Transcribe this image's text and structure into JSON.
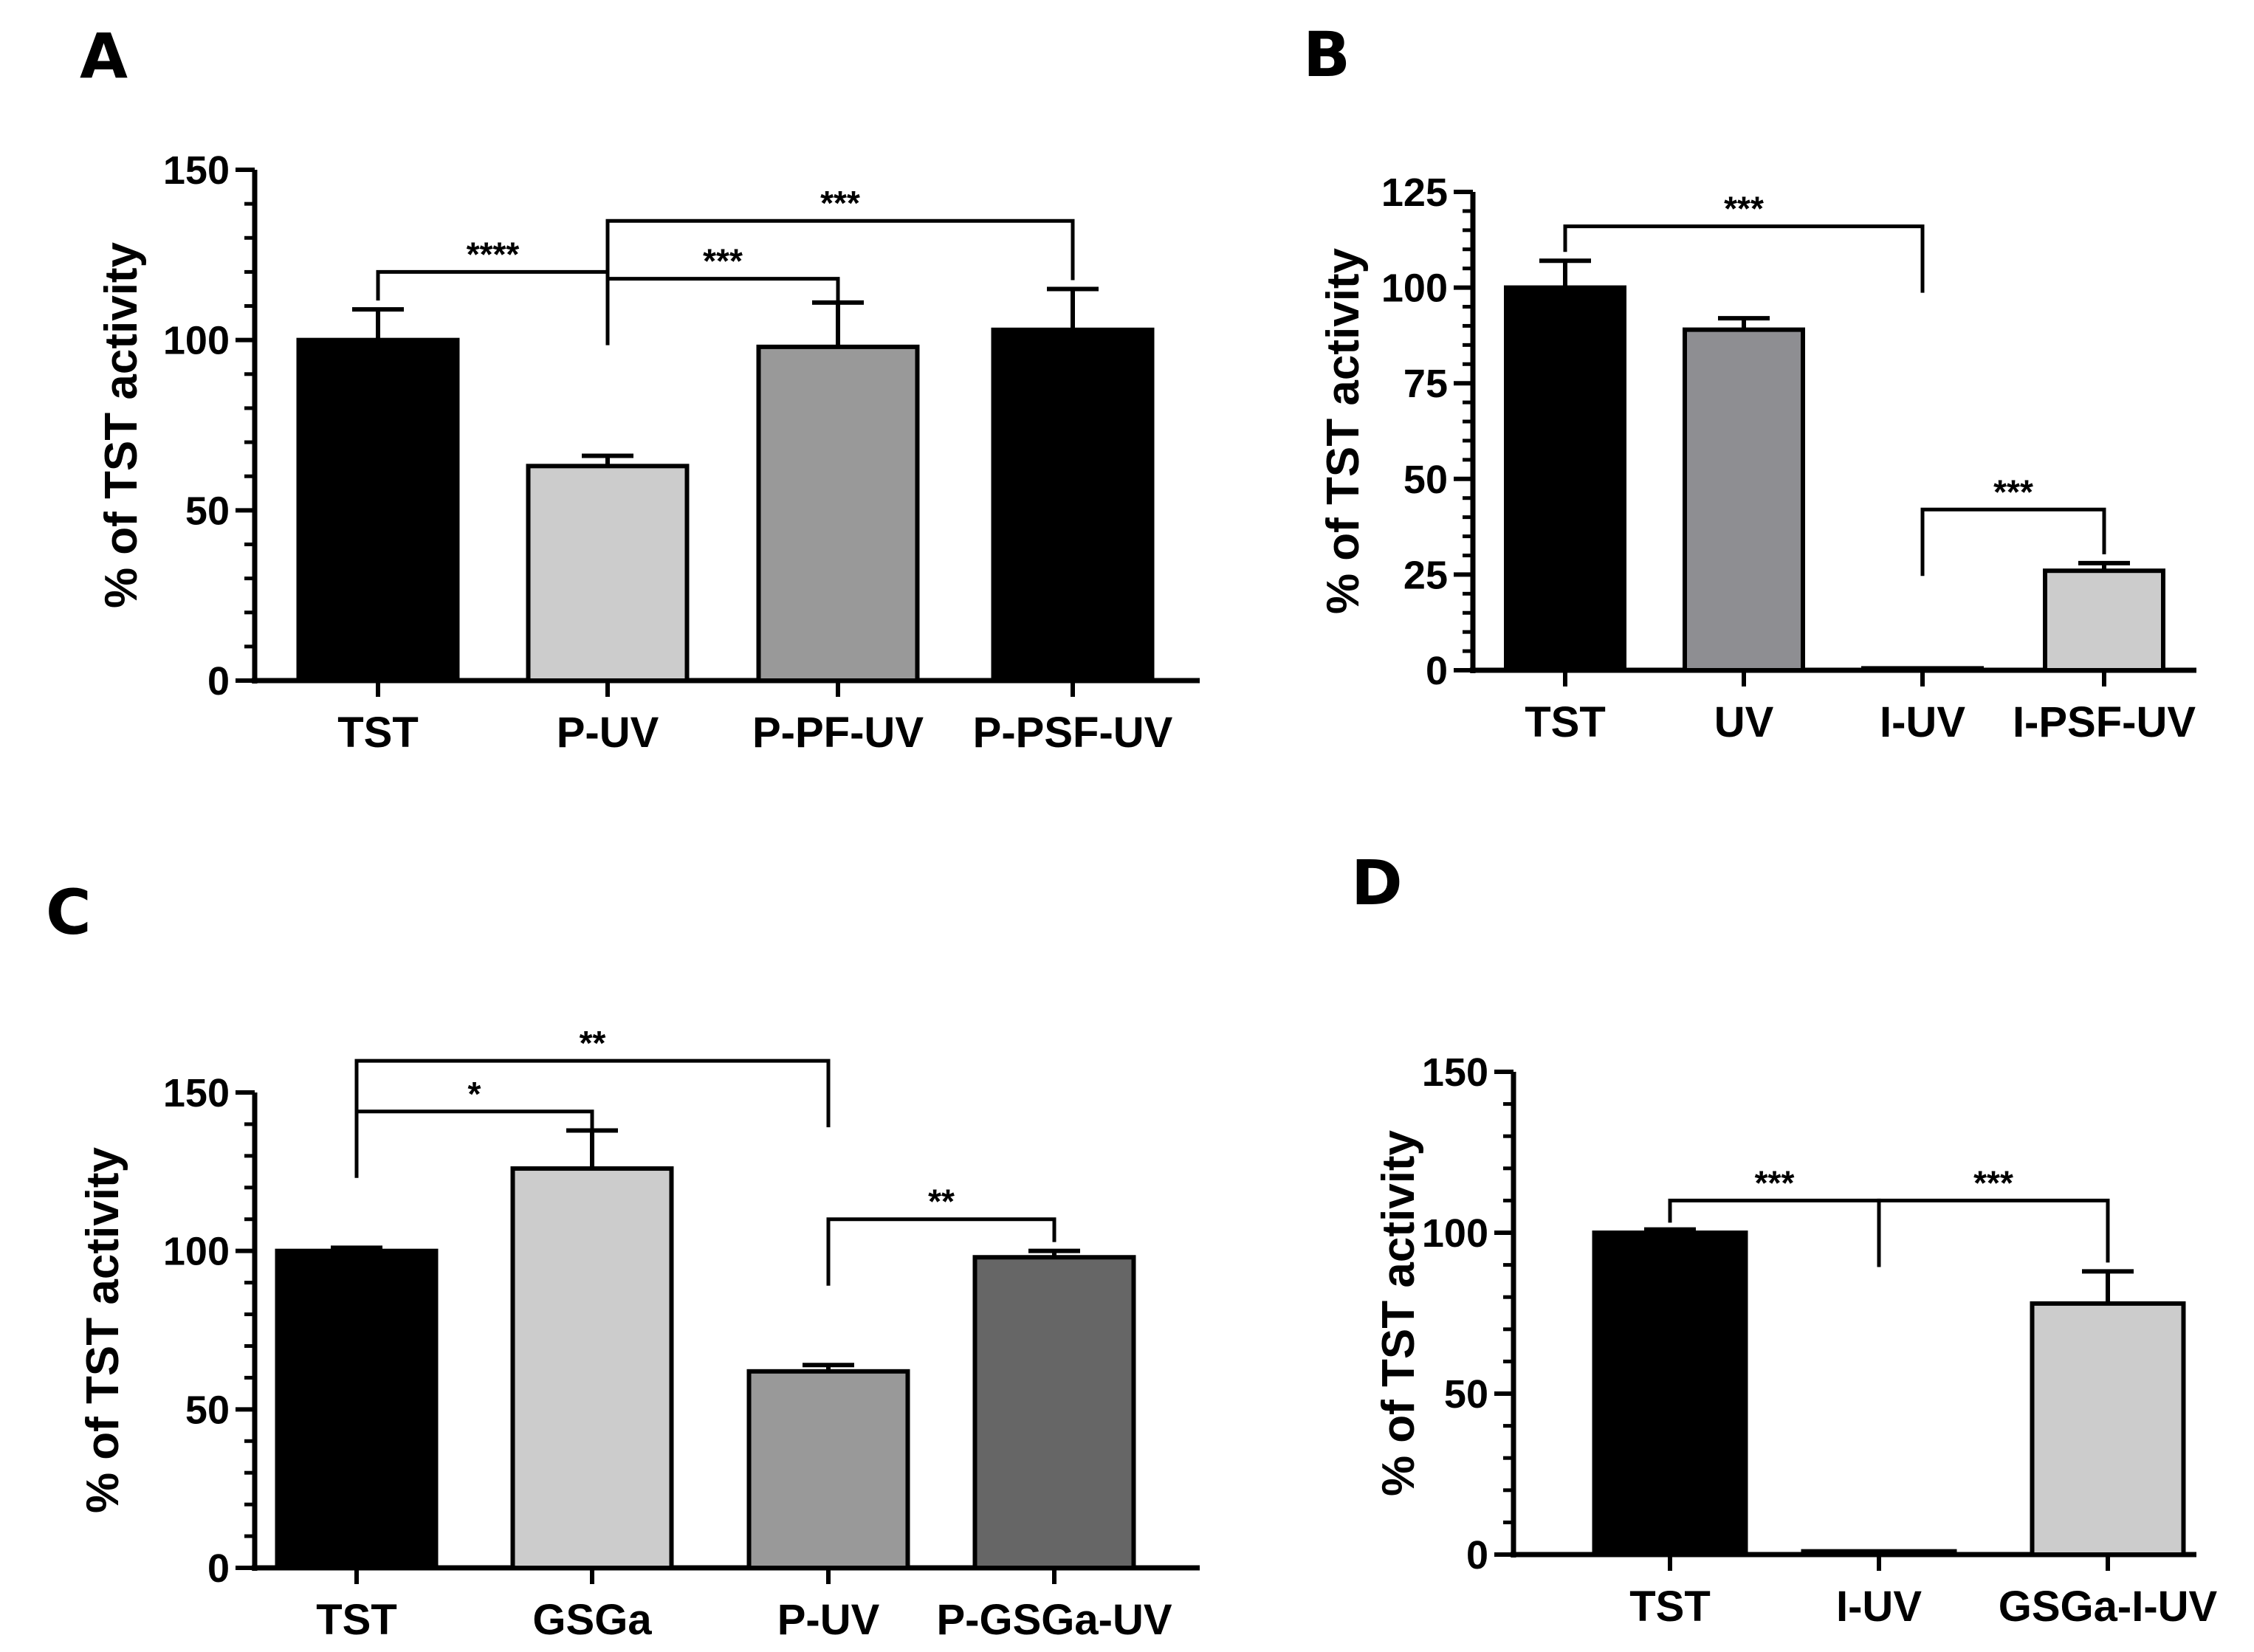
{
  "figure": {
    "description_label": "Four-panel bar chart figure"
  },
  "chart_data": [
    {
      "panel": "A",
      "type": "bar",
      "ylabel": "% of TST activity",
      "ylim": [
        0,
        150
      ],
      "yticks": [
        0,
        50,
        100,
        150
      ],
      "categories": [
        "TST",
        "P-UV",
        "P-PF-UV",
        "P-PSF-UV"
      ],
      "values": [
        100,
        63,
        98,
        103
      ],
      "errors": [
        9,
        3,
        13,
        12
      ],
      "colors": [
        "#000000",
        "#cccccc",
        "#999999",
        "#000000"
      ],
      "significance": [
        {
          "from": 0,
          "to": 1,
          "label": "****",
          "y": 120
        },
        {
          "from": 1,
          "to": 2,
          "label": "***",
          "y": 118
        },
        {
          "from": 1,
          "to": 3,
          "label": "***",
          "y": 135
        }
      ]
    },
    {
      "panel": "B",
      "type": "bar",
      "ylabel": "% of TST activity",
      "ylim": [
        0,
        125
      ],
      "yticks": [
        0,
        25,
        50,
        75,
        100,
        125
      ],
      "categories": [
        "TST",
        "UV",
        "I-UV",
        "I-PSF-UV"
      ],
      "values": [
        100,
        89,
        0.5,
        26
      ],
      "errors": [
        7,
        3,
        0,
        2
      ],
      "colors": [
        "#000000",
        "#8e8e92",
        "#000000",
        "#cccccc"
      ],
      "significance": [
        {
          "from": 0,
          "to": 2,
          "label": "***",
          "y": 116
        },
        {
          "from": 2,
          "to": 3,
          "label": "***",
          "y": 42
        }
      ]
    },
    {
      "panel": "C",
      "type": "bar",
      "ylabel": "% of TST activity",
      "ylim": [
        0,
        150
      ],
      "yticks": [
        0,
        50,
        100,
        150
      ],
      "categories": [
        "TST",
        "GSGa",
        "P-UV",
        "P-GSGa-UV"
      ],
      "values": [
        100,
        126,
        62,
        98
      ],
      "errors": [
        1,
        12,
        2,
        2
      ],
      "colors": [
        "#000000",
        "#cccccc",
        "#999999",
        "#666666"
      ],
      "significance": [
        {
          "from": 0,
          "to": 1,
          "label": "*",
          "y": 144
        },
        {
          "from": 0,
          "to": 2,
          "label": "**",
          "y": 160
        },
        {
          "from": 2,
          "to": 3,
          "label": "**",
          "y": 110
        }
      ]
    },
    {
      "panel": "D",
      "type": "bar",
      "ylabel": "% of TST activity",
      "ylim": [
        0,
        150
      ],
      "yticks": [
        0,
        50,
        100,
        150
      ],
      "categories": [
        "TST",
        "I-UV",
        "GSGa-I-UV"
      ],
      "values": [
        100,
        1,
        78
      ],
      "errors": [
        1,
        0,
        10
      ],
      "colors": [
        "#000000",
        "#000000",
        "#cccccc"
      ],
      "significance": [
        {
          "from": 0,
          "to": 1,
          "label": "***",
          "y": 110
        },
        {
          "from": 1,
          "to": 2,
          "label": "***",
          "y": 110
        }
      ]
    }
  ]
}
